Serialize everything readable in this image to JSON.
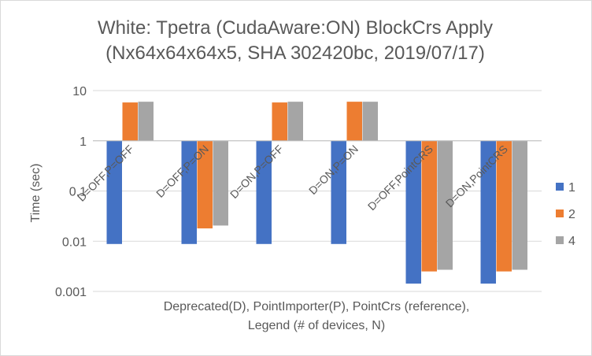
{
  "chart_data": {
    "type": "bar",
    "title": "White: Tpetra (CudaAware:ON) BlockCrs Apply",
    "subtitle": "(Nx64x64x64x5, SHA 302420bc, 2019/07/17)",
    "xlabel": "Deprecated(D), PointImporter(P), PointCrs (reference), Legend (# of devices, N)",
    "xlabel_lines": [
      "Deprecated(D), PointImporter(P), PointCrs (reference),",
      "Legend (# of devices, N)"
    ],
    "ylabel": "Time (sec)",
    "yscale": "log",
    "ylim": [
      0.001,
      10
    ],
    "baseline": 1,
    "yticks": [
      {
        "value": 10,
        "label": "10"
      },
      {
        "value": 1,
        "label": "1"
      },
      {
        "value": 0.1,
        "label": "0.1"
      },
      {
        "value": 0.01,
        "label": "0.01"
      },
      {
        "value": 0.001,
        "label": "0.001"
      }
    ],
    "grid": true,
    "legend_position": "right",
    "categories": [
      "D=OFF,P=OFF",
      "D=OFF,P=ON",
      "D=ON,P=OFF",
      "D=ON,P=ON",
      "D=OFF,PointCRS",
      "D=ON,PointCRS"
    ],
    "series": [
      {
        "name": "1",
        "color": "#4472c4",
        "values": [
          0.0088,
          0.0088,
          0.0088,
          0.0088,
          0.00143,
          0.00143
        ]
      },
      {
        "name": "2",
        "color": "#ed7d31",
        "values": [
          5.8,
          0.018,
          5.8,
          6.0,
          0.0025,
          0.0025
        ]
      },
      {
        "name": "4",
        "color": "#a5a5a5",
        "values": [
          6.0,
          0.0205,
          6.0,
          6.0,
          0.0027,
          0.0027
        ]
      }
    ]
  }
}
